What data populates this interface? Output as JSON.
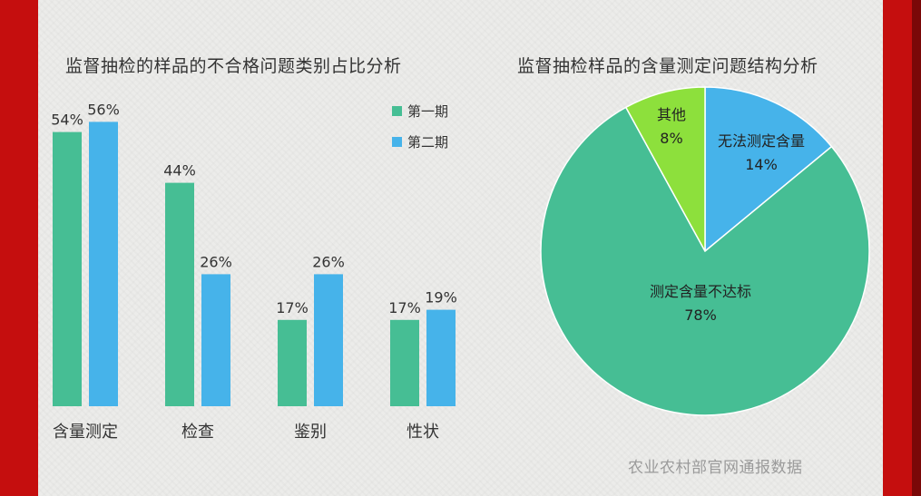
{
  "colors": {
    "series1": "#46be94",
    "series2": "#46b3ea",
    "pie_main": "#46be94",
    "pie_other": "#8de03c",
    "pie_cannot": "#46b3ea",
    "frame": "#c40d0d"
  },
  "bar_title": "监督抽检的样品的不合格问题类别占比分析",
  "pie_title": "监督抽检样品的含量测定问题结构分析",
  "source_note": "农业农村部官网通报数据",
  "chart_data": [
    {
      "type": "bar",
      "title": "监督抽检的样品的不合格问题类别占比分析",
      "categories": [
        "含量测定",
        "检查",
        "鉴别",
        "性状"
      ],
      "series": [
        {
          "name": "第一期",
          "values": [
            54,
            44,
            17,
            17
          ],
          "labels": [
            "54%",
            "44%",
            "17%",
            "17%"
          ]
        },
        {
          "name": "第二期",
          "values": [
            56,
            26,
            26,
            19
          ],
          "labels": [
            "56%",
            "26%",
            "26%",
            "19%"
          ]
        }
      ],
      "ylim": [
        0,
        60
      ],
      "legend_position": "top-right",
      "grid": false
    },
    {
      "type": "pie",
      "title": "监督抽检样品的含量测定问题结构分析",
      "slices": [
        {
          "label": "测定含量不达标",
          "value": 78,
          "pct": "78%"
        },
        {
          "label": "其他",
          "value": 8,
          "pct": "8%"
        },
        {
          "label": "无法测定含量",
          "value": 14,
          "pct": "14%"
        }
      ]
    }
  ]
}
